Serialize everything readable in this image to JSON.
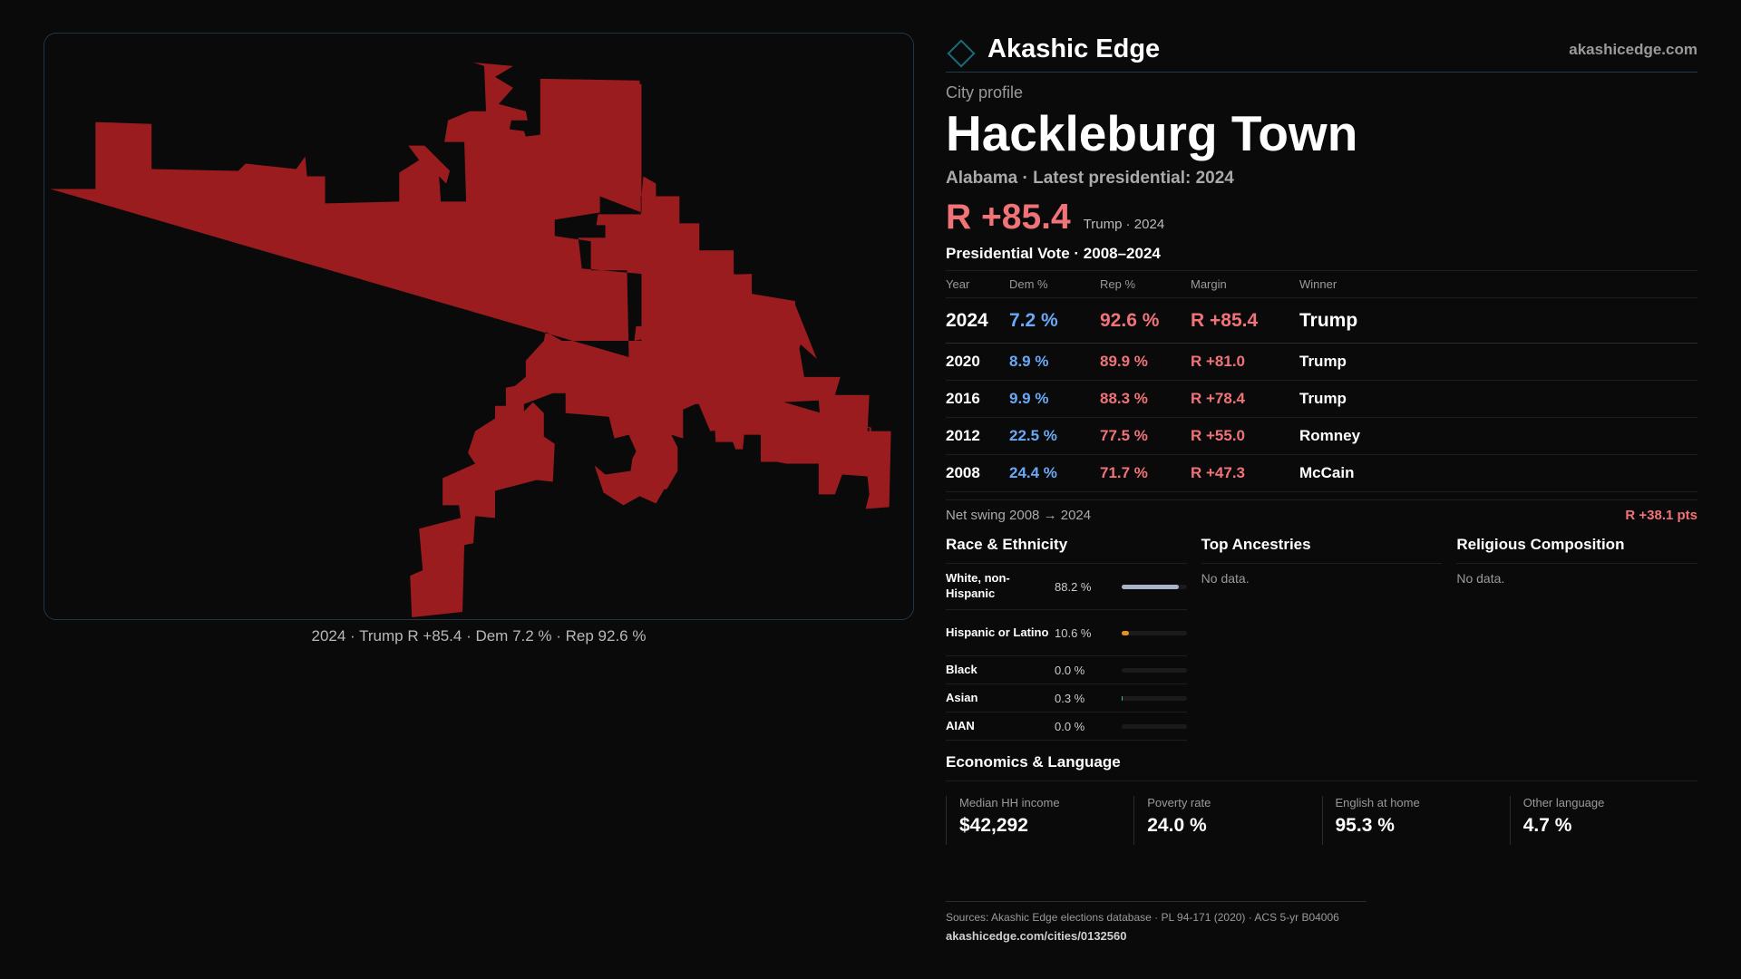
{
  "map": {
    "caption": "2024 · Trump R +85.4 · Dem 7.2 % · Rep 92.6 %",
    "fill_color": "#9b1c1f"
  },
  "brand": {
    "name": "Akashic Edge",
    "url": "akashicedge.com",
    "logo_icon": "diamond-outline-icon"
  },
  "profile": {
    "kicker": "City profile",
    "city": "Hackleburg Town",
    "subtitle": "Alabama · Latest presidential: 2024",
    "headline_margin": "R +85.4",
    "headline_note": "Trump · 2024"
  },
  "votes": {
    "title": "Presidential Vote · 2008–2024",
    "headers": {
      "year": "Year",
      "dem": "Dem %",
      "rep": "Rep %",
      "margin": "Margin",
      "winner": "Winner"
    },
    "rows": [
      {
        "year": "2024",
        "dem": "7.2 %",
        "rep": "92.6 %",
        "margin": "R +85.4",
        "winner": "Trump"
      },
      {
        "year": "2020",
        "dem": "8.9 %",
        "rep": "89.9 %",
        "margin": "R +81.0",
        "winner": "Trump"
      },
      {
        "year": "2016",
        "dem": "9.9 %",
        "rep": "88.3 %",
        "margin": "R +78.4",
        "winner": "Trump"
      },
      {
        "year": "2012",
        "dem": "22.5 %",
        "rep": "77.5 %",
        "margin": "R +55.0",
        "winner": "Romney"
      },
      {
        "year": "2008",
        "dem": "24.4 %",
        "rep": "71.7 %",
        "margin": "R +47.3",
        "winner": "McCain"
      }
    ]
  },
  "swing": {
    "label": "Net swing 2008 → 2024",
    "value": "R +38.1 pts"
  },
  "race": {
    "title": "Race & Ethnicity",
    "rows": [
      {
        "label": "White, non-Hispanic",
        "value": "88.2 %",
        "pct": 88.2,
        "color": "#aab4c8"
      },
      {
        "label": "Hispanic or Latino",
        "value": "10.6 %",
        "pct": 10.6,
        "color": "#e8921e"
      },
      {
        "label": "Black",
        "value": "0.0 %",
        "pct": 0.0,
        "color": "#888888"
      },
      {
        "label": "Asian",
        "value": "0.3 %",
        "pct": 0.3,
        "color": "#3fb5a6"
      },
      {
        "label": "AIAN",
        "value": "0.0 %",
        "pct": 0.0,
        "color": "#888888"
      }
    ]
  },
  "ancestries": {
    "title": "Top Ancestries",
    "empty": "No data."
  },
  "religion": {
    "title": "Religious Composition",
    "empty": "No data."
  },
  "economics": {
    "title": "Economics & Language",
    "cells": [
      {
        "label": "Median HH income",
        "value": "$42,292"
      },
      {
        "label": "Poverty rate",
        "value": "24.0 %"
      },
      {
        "label": "English at home",
        "value": "95.3 %"
      },
      {
        "label": "Other language",
        "value": "4.7 %"
      }
    ]
  },
  "sources": {
    "text": "Sources: Akashic Edge elections database · PL 94-171 (2020) · ACS 5-yr B04006",
    "link": "akashicedge.com/cities/0132560"
  }
}
